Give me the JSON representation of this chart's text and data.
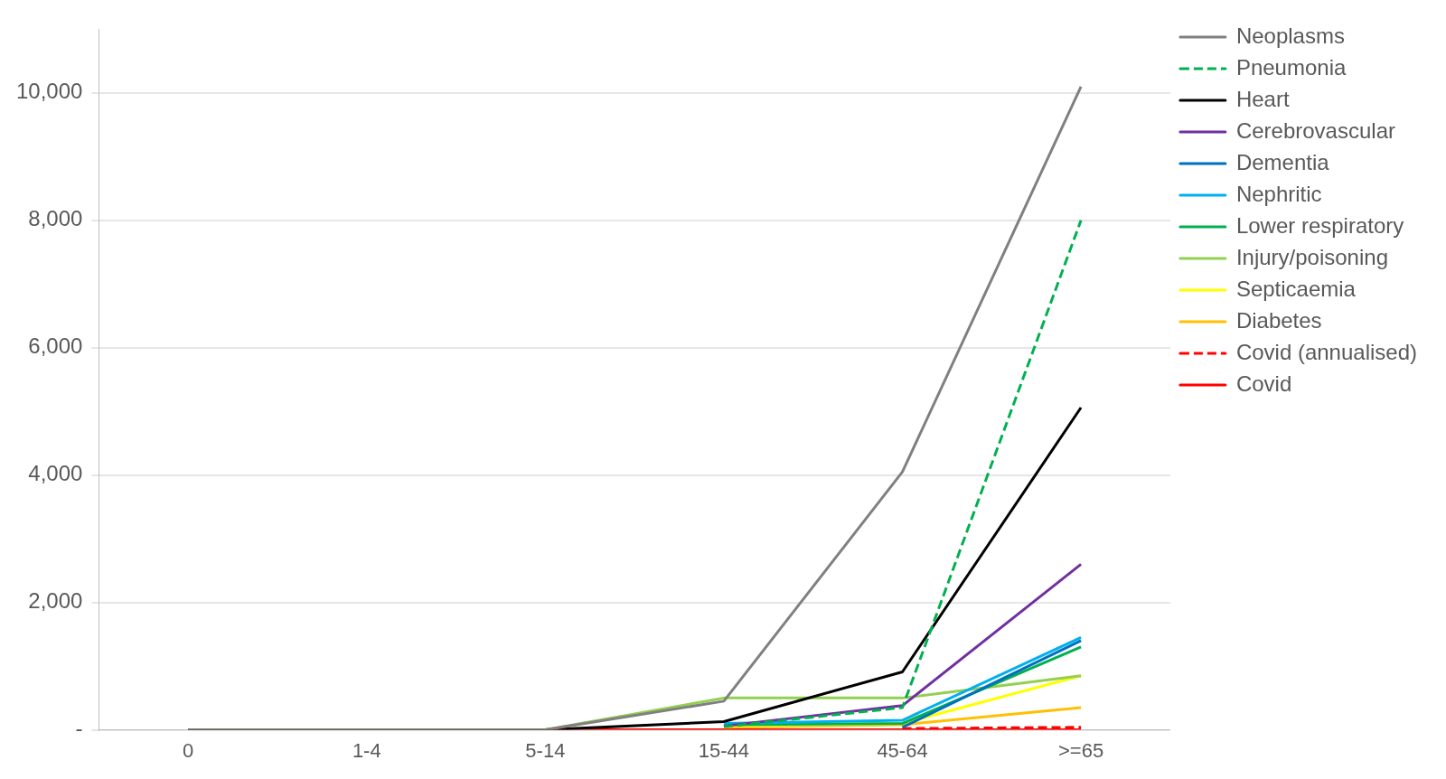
{
  "chart_data": {
    "type": "line",
    "categories": [
      "0",
      "1-4",
      "5-14",
      "15-44",
      "45-64",
      ">=65"
    ],
    "ylim": [
      0,
      11000
    ],
    "yticks": [
      {
        "value": 0,
        "label": "-"
      },
      {
        "value": 2000,
        "label": "2,000"
      },
      {
        "value": 4000,
        "label": "4,000"
      },
      {
        "value": 6000,
        "label": "6,000"
      },
      {
        "value": 8000,
        "label": "8,000"
      },
      {
        "value": 10000,
        "label": "10,000"
      }
    ],
    "grid": "y",
    "legend": "top right",
    "marker": "none",
    "series": [
      {
        "name": "Neoplasms",
        "color": "#808080",
        "line_style": "solid",
        "values": [
          0,
          0,
          0,
          450,
          4050,
          10100
        ]
      },
      {
        "name": "Pneumonia",
        "color": "#00b050",
        "line_style": "dashed",
        "values": [
          null,
          null,
          null,
          50,
          350,
          8000
        ]
      },
      {
        "name": "Heart",
        "color": "#000000",
        "line_style": "solid",
        "values": [
          0,
          0,
          0,
          130,
          910,
          5060
        ]
      },
      {
        "name": "Cerebrovascular",
        "color": "#7030a0",
        "line_style": "solid",
        "values": [
          null,
          null,
          null,
          60,
          380,
          2600
        ]
      },
      {
        "name": "Dementia",
        "color": "#0070c0",
        "line_style": "solid",
        "values": [
          null,
          null,
          null,
          null,
          40,
          1400
        ]
      },
      {
        "name": "Nephritic",
        "color": "#00b0f0",
        "line_style": "solid",
        "values": [
          null,
          null,
          null,
          100,
          150,
          1450
        ]
      },
      {
        "name": "Lower respiratory",
        "color": "#00b050",
        "line_style": "solid",
        "values": [
          null,
          null,
          null,
          80,
          100,
          1300
        ]
      },
      {
        "name": "Injury/poisoning",
        "color": "#92d050",
        "line_style": "solid",
        "values": [
          0,
          0,
          0,
          500,
          500,
          850
        ]
      },
      {
        "name": "Septicaemia",
        "color": "#ffff00",
        "line_style": "solid",
        "values": [
          null,
          null,
          null,
          60,
          100,
          850
        ]
      },
      {
        "name": "Diabetes",
        "color": "#ffc000",
        "line_style": "solid",
        "values": [
          null,
          null,
          null,
          40,
          80,
          350
        ]
      },
      {
        "name": "Covid (annualised)",
        "color": "#ff0000",
        "line_style": "dashed",
        "values": [
          null,
          null,
          null,
          null,
          20,
          40
        ]
      },
      {
        "name": "Covid",
        "color": "#ff0000",
        "line_style": "solid",
        "values": [
          0,
          0,
          0,
          0,
          0,
          0
        ]
      }
    ]
  }
}
